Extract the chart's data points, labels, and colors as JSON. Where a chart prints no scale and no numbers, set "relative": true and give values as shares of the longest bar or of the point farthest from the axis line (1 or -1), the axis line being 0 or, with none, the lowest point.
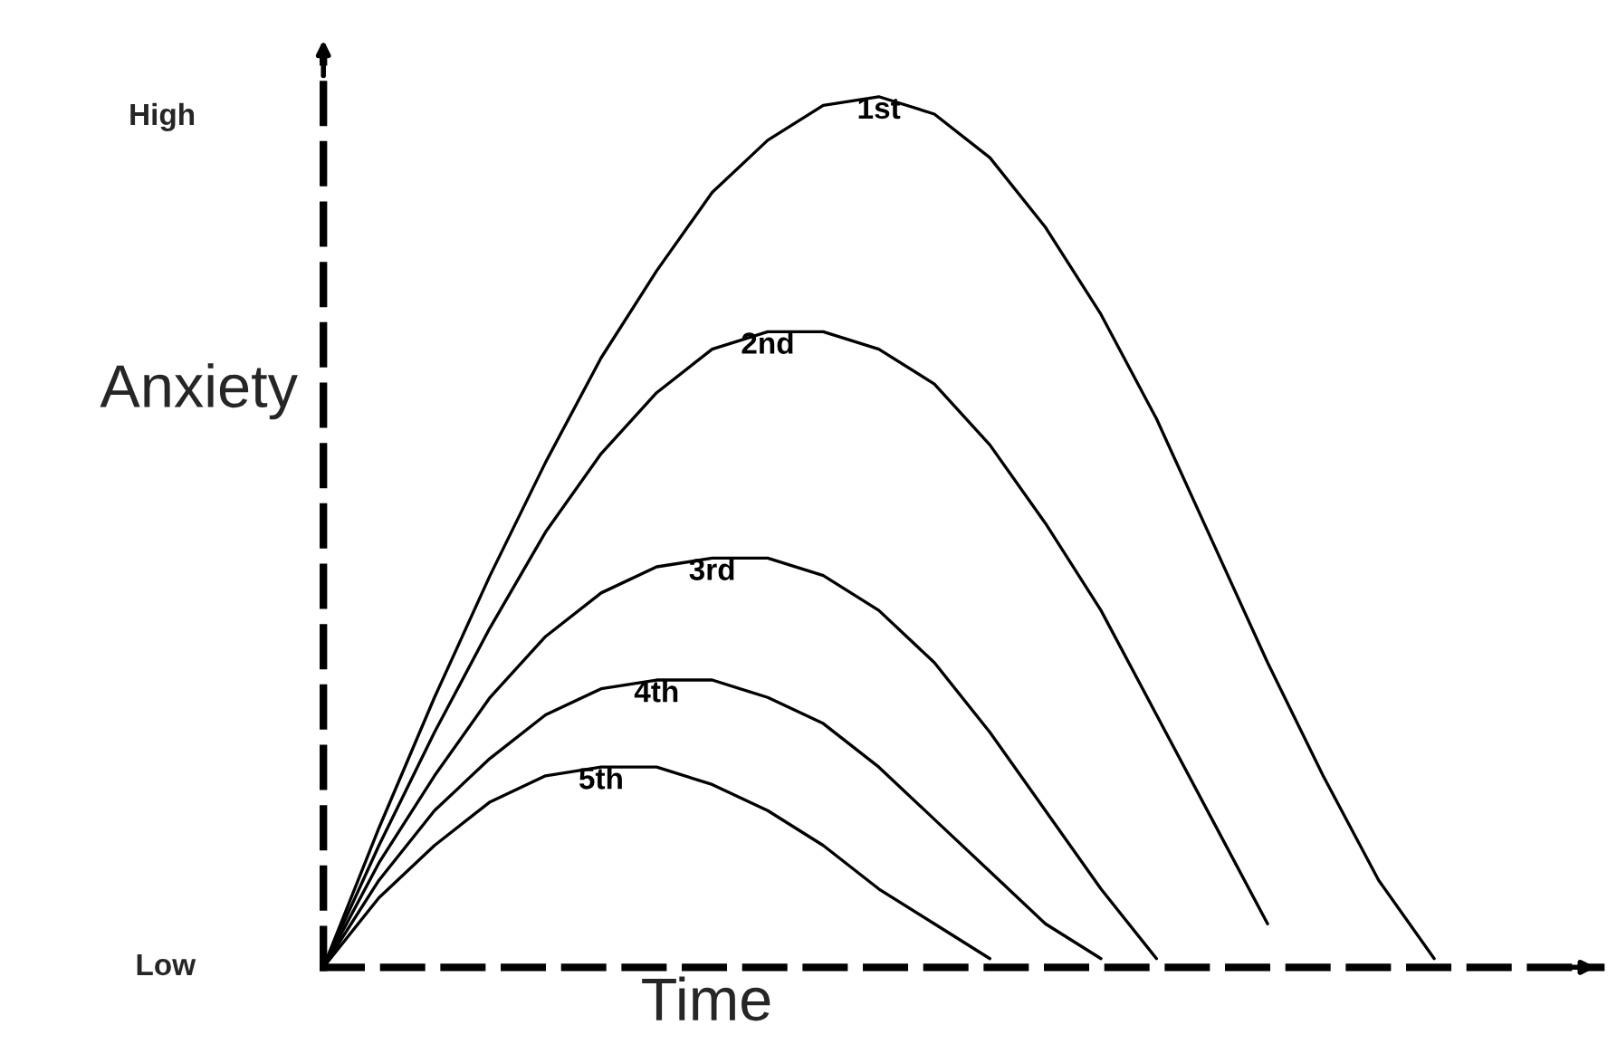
{
  "chart_data": {
    "type": "line",
    "relative": true,
    "xlabel": "Time",
    "ylabel": "Anxiety",
    "annotations": [
      "High",
      "Low"
    ],
    "grid": false,
    "legend": false,
    "marker": "none",
    "line_style": "solid",
    "categories": [
      null,
      null,
      null,
      null,
      null,
      null,
      null,
      null,
      null,
      null,
      null,
      null,
      null,
      null,
      null,
      null,
      null,
      null,
      null,
      null,
      null
    ],
    "series": [
      {
        "name": "1st",
        "color": "#000000",
        "values": [
          0,
          0.16,
          0.31,
          0.45,
          0.58,
          0.7,
          0.8,
          0.89,
          0.95,
          0.99,
          1.0,
          0.98,
          0.93,
          0.85,
          0.75,
          0.63,
          0.49,
          0.35,
          0.22,
          0.1,
          0.01
        ]
      },
      {
        "name": "2nd",
        "color": "#000000",
        "values": [
          0,
          0.14,
          0.27,
          0.39,
          0.5,
          0.59,
          0.66,
          0.71,
          0.73,
          0.73,
          0.71,
          0.67,
          0.6,
          0.51,
          0.41,
          0.29,
          0.17,
          0.05,
          null,
          null,
          null
        ]
      },
      {
        "name": "3rd",
        "color": "#000000",
        "values": [
          0,
          0.12,
          0.22,
          0.31,
          0.38,
          0.43,
          0.46,
          0.47,
          0.47,
          0.45,
          0.41,
          0.35,
          0.27,
          0.18,
          0.09,
          0.01,
          null,
          null,
          null,
          null,
          null
        ]
      },
      {
        "name": "4th",
        "color": "#000000",
        "values": [
          0,
          0.1,
          0.18,
          0.24,
          0.29,
          0.32,
          0.33,
          0.33,
          0.31,
          0.28,
          0.23,
          0.17,
          0.11,
          0.05,
          0.01,
          null,
          null,
          null,
          null,
          null,
          null
        ]
      },
      {
        "name": "5th",
        "color": "#000000",
        "values": [
          0,
          0.08,
          0.14,
          0.19,
          0.22,
          0.23,
          0.23,
          0.21,
          0.18,
          0.14,
          0.09,
          0.05,
          0.01,
          null,
          null,
          null,
          null,
          null,
          null,
          null,
          null
        ]
      }
    ]
  }
}
